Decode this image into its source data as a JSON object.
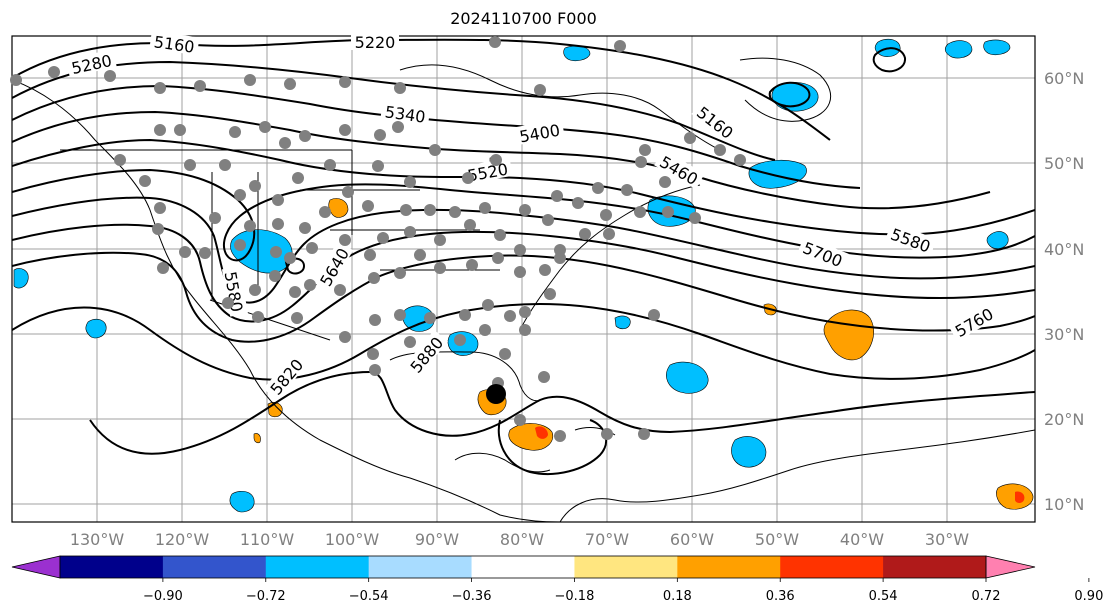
{
  "title": "2024110700 F000",
  "colors": {
    "contour": "#000000",
    "grid": "#a0a0a0",
    "coastline": "#000000",
    "station_dot": "#808080",
    "storm_center": "#000000"
  },
  "axes": {
    "lon_labels": [
      "130°W",
      "120°W",
      "110°W",
      "100°W",
      "90°W",
      "80°W",
      "70°W",
      "60°W",
      "50°W",
      "40°W",
      "30°W"
    ],
    "lat_labels": [
      "60°N",
      "50°N",
      "40°N",
      "30°N",
      "20°N",
      "10°N"
    ]
  },
  "contour_labels": [
    "5160",
    "5220",
    "5280",
    "5340",
    "5400",
    "5160",
    "5460",
    "5520",
    "5580",
    "5640",
    "5580",
    "5700",
    "5760",
    "5820",
    "5880"
  ],
  "colorbar": {
    "colors": [
      "#9b30d0",
      "#00008b",
      "#3355cc",
      "#00bfff",
      "#a8dcff",
      "#ffffff",
      "#ffe680",
      "#ffa000",
      "#ff3300",
      "#b01a1a",
      "#ff80b0"
    ],
    "tick_labels": [
      "−0.90",
      "−0.72",
      "−0.54",
      "−0.36",
      "−0.18",
      "0.18",
      "0.36",
      "0.54",
      "0.72",
      "0.90"
    ]
  }
}
